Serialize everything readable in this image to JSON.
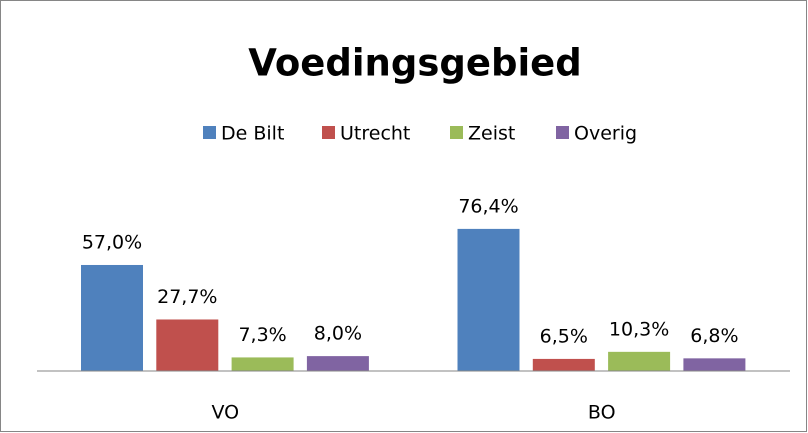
{
  "chart_data": {
    "type": "bar",
    "title": "Voedingsgebied",
    "categories": [
      "VO",
      "BO"
    ],
    "series": [
      {
        "name": "De Bilt",
        "color": "#4f81bd",
        "values": [
          57.0,
          76.4
        ],
        "value_labels": [
          "57,0%",
          "76,4%"
        ]
      },
      {
        "name": "Utrecht",
        "color": "#c0504d",
        "values": [
          27.7,
          6.5
        ],
        "value_labels": [
          "27,7%",
          "6,5%"
        ]
      },
      {
        "name": "Zeist",
        "color": "#9bbb59",
        "values": [
          7.3,
          10.3
        ],
        "value_labels": [
          "7,3%",
          "10,3%"
        ]
      },
      {
        "name": "Overig",
        "color": "#8064a2",
        "values": [
          8.0,
          6.8
        ],
        "value_labels": [
          "8,0%",
          "6,8%"
        ]
      }
    ],
    "legend": "top"
  }
}
